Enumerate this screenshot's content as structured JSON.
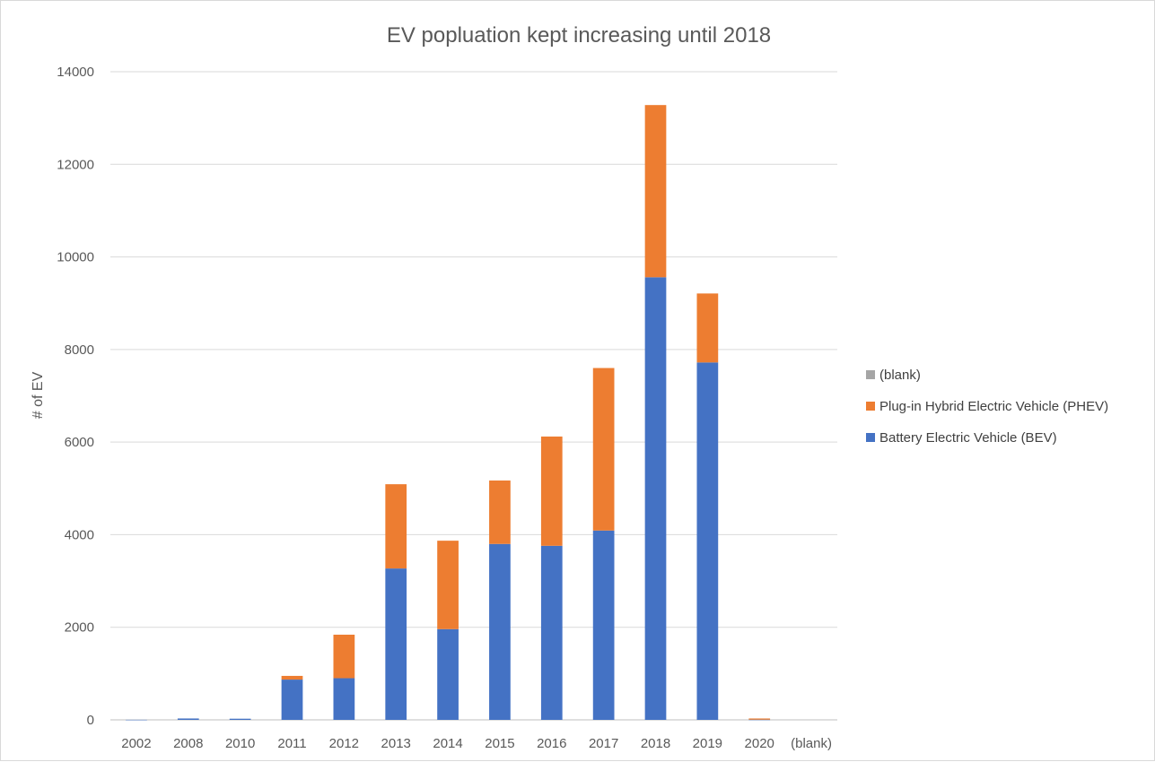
{
  "chart_data": {
    "type": "bar",
    "stacked": true,
    "title": "EV popluation kept increasing until 2018",
    "xlabel": "",
    "ylabel": "# of EV",
    "ylim": [
      0,
      14000
    ],
    "yticks": [
      0,
      2000,
      4000,
      6000,
      8000,
      10000,
      12000,
      14000
    ],
    "grid": true,
    "legend_position": "right",
    "categories": [
      "2002",
      "2008",
      "2010",
      "2011",
      "2012",
      "2013",
      "2014",
      "2015",
      "2016",
      "2017",
      "2018",
      "2019",
      "2020",
      "(blank)"
    ],
    "series": [
      {
        "name": "Battery Electric Vehicle (BEV)",
        "color": "#4472c4",
        "values": [
          2,
          30,
          25,
          870,
          900,
          3270,
          1960,
          3800,
          3760,
          4090,
          9560,
          7720,
          5,
          0
        ]
      },
      {
        "name": "Plug-in Hybrid Electric Vehicle (PHEV)",
        "color": "#ed7d31",
        "values": [
          0,
          0,
          0,
          80,
          940,
          1820,
          1910,
          1370,
          2360,
          3510,
          3720,
          1490,
          25,
          0
        ]
      },
      {
        "name": "(blank)",
        "color": "#a5a5a5",
        "values": [
          0,
          0,
          0,
          0,
          0,
          0,
          0,
          0,
          0,
          0,
          0,
          0,
          0,
          0
        ]
      }
    ],
    "legend_order": [
      "(blank)",
      "Plug-in Hybrid Electric Vehicle (PHEV)",
      "Battery Electric Vehicle (BEV)"
    ]
  }
}
